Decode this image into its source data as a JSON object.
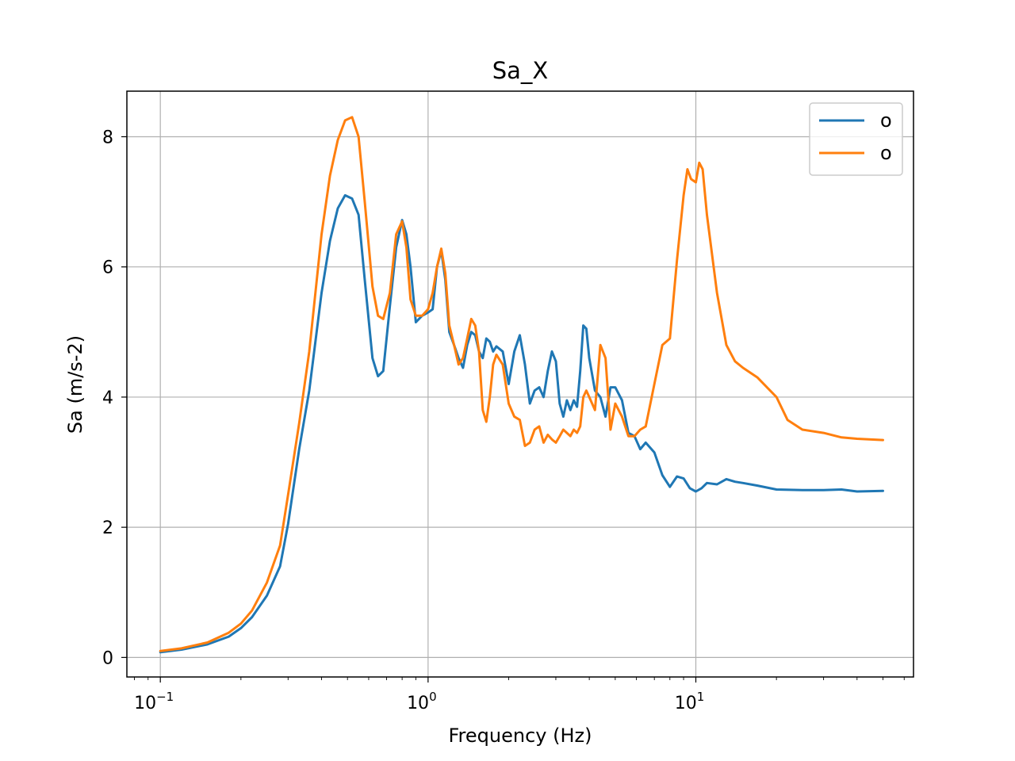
{
  "chart_data": {
    "type": "line",
    "title": "Sa_X",
    "xlabel": "Frequency (Hz)",
    "ylabel": "Sa (m/s-2)",
    "xscale": "log",
    "xlim": [
      0.075,
      65
    ],
    "ylim": [
      -0.3,
      8.7
    ],
    "yticks": [
      0,
      2,
      4,
      6,
      8
    ],
    "xticks": [
      {
        "value": 0.1,
        "base": "10",
        "exp": "−1"
      },
      {
        "value": 1,
        "base": "10",
        "exp": "0"
      },
      {
        "value": 10,
        "base": "10",
        "exp": "1"
      }
    ],
    "grid": true,
    "legend_position": "top-right",
    "series": [
      {
        "name": "o",
        "color": "#1f77b4",
        "points": [
          [
            0.1,
            0.08
          ],
          [
            0.12,
            0.12
          ],
          [
            0.15,
            0.2
          ],
          [
            0.18,
            0.32
          ],
          [
            0.2,
            0.45
          ],
          [
            0.22,
            0.62
          ],
          [
            0.25,
            0.95
          ],
          [
            0.28,
            1.4
          ],
          [
            0.3,
            2.05
          ],
          [
            0.33,
            3.2
          ],
          [
            0.36,
            4.1
          ],
          [
            0.4,
            5.6
          ],
          [
            0.43,
            6.4
          ],
          [
            0.46,
            6.9
          ],
          [
            0.49,
            7.1
          ],
          [
            0.52,
            7.05
          ],
          [
            0.55,
            6.8
          ],
          [
            0.58,
            5.8
          ],
          [
            0.62,
            4.6
          ],
          [
            0.65,
            4.32
          ],
          [
            0.68,
            4.4
          ],
          [
            0.72,
            5.4
          ],
          [
            0.76,
            6.3
          ],
          [
            0.8,
            6.72
          ],
          [
            0.83,
            6.5
          ],
          [
            0.86,
            6.0
          ],
          [
            0.9,
            5.15
          ],
          [
            0.95,
            5.25
          ],
          [
            1.0,
            5.3
          ],
          [
            1.04,
            5.35
          ],
          [
            1.08,
            6.0
          ],
          [
            1.12,
            6.25
          ],
          [
            1.16,
            5.8
          ],
          [
            1.2,
            5.0
          ],
          [
            1.25,
            4.8
          ],
          [
            1.3,
            4.6
          ],
          [
            1.35,
            4.45
          ],
          [
            1.4,
            4.8
          ],
          [
            1.45,
            5.0
          ],
          [
            1.5,
            4.95
          ],
          [
            1.55,
            4.7
          ],
          [
            1.6,
            4.6
          ],
          [
            1.65,
            4.9
          ],
          [
            1.7,
            4.85
          ],
          [
            1.75,
            4.7
          ],
          [
            1.8,
            4.78
          ],
          [
            1.9,
            4.7
          ],
          [
            2.0,
            4.2
          ],
          [
            2.1,
            4.7
          ],
          [
            2.2,
            4.95
          ],
          [
            2.3,
            4.5
          ],
          [
            2.4,
            3.9
          ],
          [
            2.5,
            4.1
          ],
          [
            2.6,
            4.15
          ],
          [
            2.7,
            4.0
          ],
          [
            2.8,
            4.4
          ],
          [
            2.9,
            4.7
          ],
          [
            3.0,
            4.55
          ],
          [
            3.1,
            3.9
          ],
          [
            3.2,
            3.7
          ],
          [
            3.3,
            3.95
          ],
          [
            3.4,
            3.8
          ],
          [
            3.5,
            3.95
          ],
          [
            3.6,
            3.85
          ],
          [
            3.7,
            4.4
          ],
          [
            3.8,
            5.1
          ],
          [
            3.9,
            5.05
          ],
          [
            4.0,
            4.6
          ],
          [
            4.2,
            4.1
          ],
          [
            4.4,
            4.0
          ],
          [
            4.6,
            3.7
          ],
          [
            4.8,
            4.15
          ],
          [
            5.0,
            4.15
          ],
          [
            5.3,
            3.95
          ],
          [
            5.6,
            3.45
          ],
          [
            5.9,
            3.4
          ],
          [
            6.2,
            3.2
          ],
          [
            6.5,
            3.3
          ],
          [
            7.0,
            3.15
          ],
          [
            7.5,
            2.8
          ],
          [
            8.0,
            2.62
          ],
          [
            8.5,
            2.78
          ],
          [
            9.0,
            2.75
          ],
          [
            9.5,
            2.6
          ],
          [
            10.0,
            2.55
          ],
          [
            10.5,
            2.6
          ],
          [
            11.0,
            2.68
          ],
          [
            12.0,
            2.66
          ],
          [
            13.0,
            2.74
          ],
          [
            14.0,
            2.7
          ],
          [
            15.0,
            2.68
          ],
          [
            17.0,
            2.64
          ],
          [
            20.0,
            2.58
          ],
          [
            25.0,
            2.57
          ],
          [
            30.0,
            2.57
          ],
          [
            35.0,
            2.58
          ],
          [
            40.0,
            2.55
          ],
          [
            50.0,
            2.56
          ]
        ]
      },
      {
        "name": "o",
        "color": "#ff7f0e",
        "points": [
          [
            0.1,
            0.1
          ],
          [
            0.12,
            0.14
          ],
          [
            0.15,
            0.23
          ],
          [
            0.18,
            0.38
          ],
          [
            0.2,
            0.52
          ],
          [
            0.22,
            0.72
          ],
          [
            0.25,
            1.15
          ],
          [
            0.28,
            1.72
          ],
          [
            0.3,
            2.5
          ],
          [
            0.33,
            3.6
          ],
          [
            0.36,
            4.7
          ],
          [
            0.4,
            6.5
          ],
          [
            0.43,
            7.4
          ],
          [
            0.46,
            7.95
          ],
          [
            0.49,
            8.25
          ],
          [
            0.52,
            8.3
          ],
          [
            0.55,
            8.0
          ],
          [
            0.58,
            7.0
          ],
          [
            0.62,
            5.7
          ],
          [
            0.65,
            5.25
          ],
          [
            0.68,
            5.2
          ],
          [
            0.72,
            5.6
          ],
          [
            0.76,
            6.5
          ],
          [
            0.8,
            6.7
          ],
          [
            0.83,
            6.3
          ],
          [
            0.86,
            5.5
          ],
          [
            0.9,
            5.25
          ],
          [
            0.95,
            5.25
          ],
          [
            1.0,
            5.35
          ],
          [
            1.04,
            5.6
          ],
          [
            1.08,
            6.0
          ],
          [
            1.12,
            6.28
          ],
          [
            1.16,
            5.9
          ],
          [
            1.2,
            5.1
          ],
          [
            1.25,
            4.8
          ],
          [
            1.3,
            4.5
          ],
          [
            1.35,
            4.6
          ],
          [
            1.4,
            4.9
          ],
          [
            1.45,
            5.2
          ],
          [
            1.5,
            5.1
          ],
          [
            1.55,
            4.7
          ],
          [
            1.6,
            3.8
          ],
          [
            1.65,
            3.62
          ],
          [
            1.7,
            4.0
          ],
          [
            1.75,
            4.5
          ],
          [
            1.8,
            4.65
          ],
          [
            1.9,
            4.5
          ],
          [
            2.0,
            3.9
          ],
          [
            2.1,
            3.7
          ],
          [
            2.2,
            3.65
          ],
          [
            2.3,
            3.25
          ],
          [
            2.4,
            3.3
          ],
          [
            2.5,
            3.5
          ],
          [
            2.6,
            3.55
          ],
          [
            2.7,
            3.3
          ],
          [
            2.8,
            3.42
          ],
          [
            2.9,
            3.35
          ],
          [
            3.0,
            3.3
          ],
          [
            3.1,
            3.4
          ],
          [
            3.2,
            3.5
          ],
          [
            3.3,
            3.45
          ],
          [
            3.4,
            3.4
          ],
          [
            3.5,
            3.5
          ],
          [
            3.6,
            3.45
          ],
          [
            3.7,
            3.55
          ],
          [
            3.8,
            4.0
          ],
          [
            3.9,
            4.1
          ],
          [
            4.0,
            4.0
          ],
          [
            4.2,
            3.8
          ],
          [
            4.4,
            4.8
          ],
          [
            4.6,
            4.6
          ],
          [
            4.8,
            3.5
          ],
          [
            5.0,
            3.9
          ],
          [
            5.3,
            3.7
          ],
          [
            5.6,
            3.4
          ],
          [
            5.9,
            3.4
          ],
          [
            6.2,
            3.5
          ],
          [
            6.5,
            3.55
          ],
          [
            7.0,
            4.2
          ],
          [
            7.5,
            4.8
          ],
          [
            8.0,
            4.9
          ],
          [
            8.5,
            6.1
          ],
          [
            9.0,
            7.1
          ],
          [
            9.3,
            7.5
          ],
          [
            9.6,
            7.35
          ],
          [
            10.0,
            7.3
          ],
          [
            10.3,
            7.6
          ],
          [
            10.6,
            7.5
          ],
          [
            11.0,
            6.8
          ],
          [
            12.0,
            5.6
          ],
          [
            13.0,
            4.8
          ],
          [
            14.0,
            4.55
          ],
          [
            15.0,
            4.45
          ],
          [
            17.0,
            4.3
          ],
          [
            20.0,
            4.0
          ],
          [
            22.0,
            3.65
          ],
          [
            25.0,
            3.5
          ],
          [
            30.0,
            3.45
          ],
          [
            35.0,
            3.38
          ],
          [
            40.0,
            3.36
          ],
          [
            50.0,
            3.34
          ]
        ]
      }
    ]
  }
}
